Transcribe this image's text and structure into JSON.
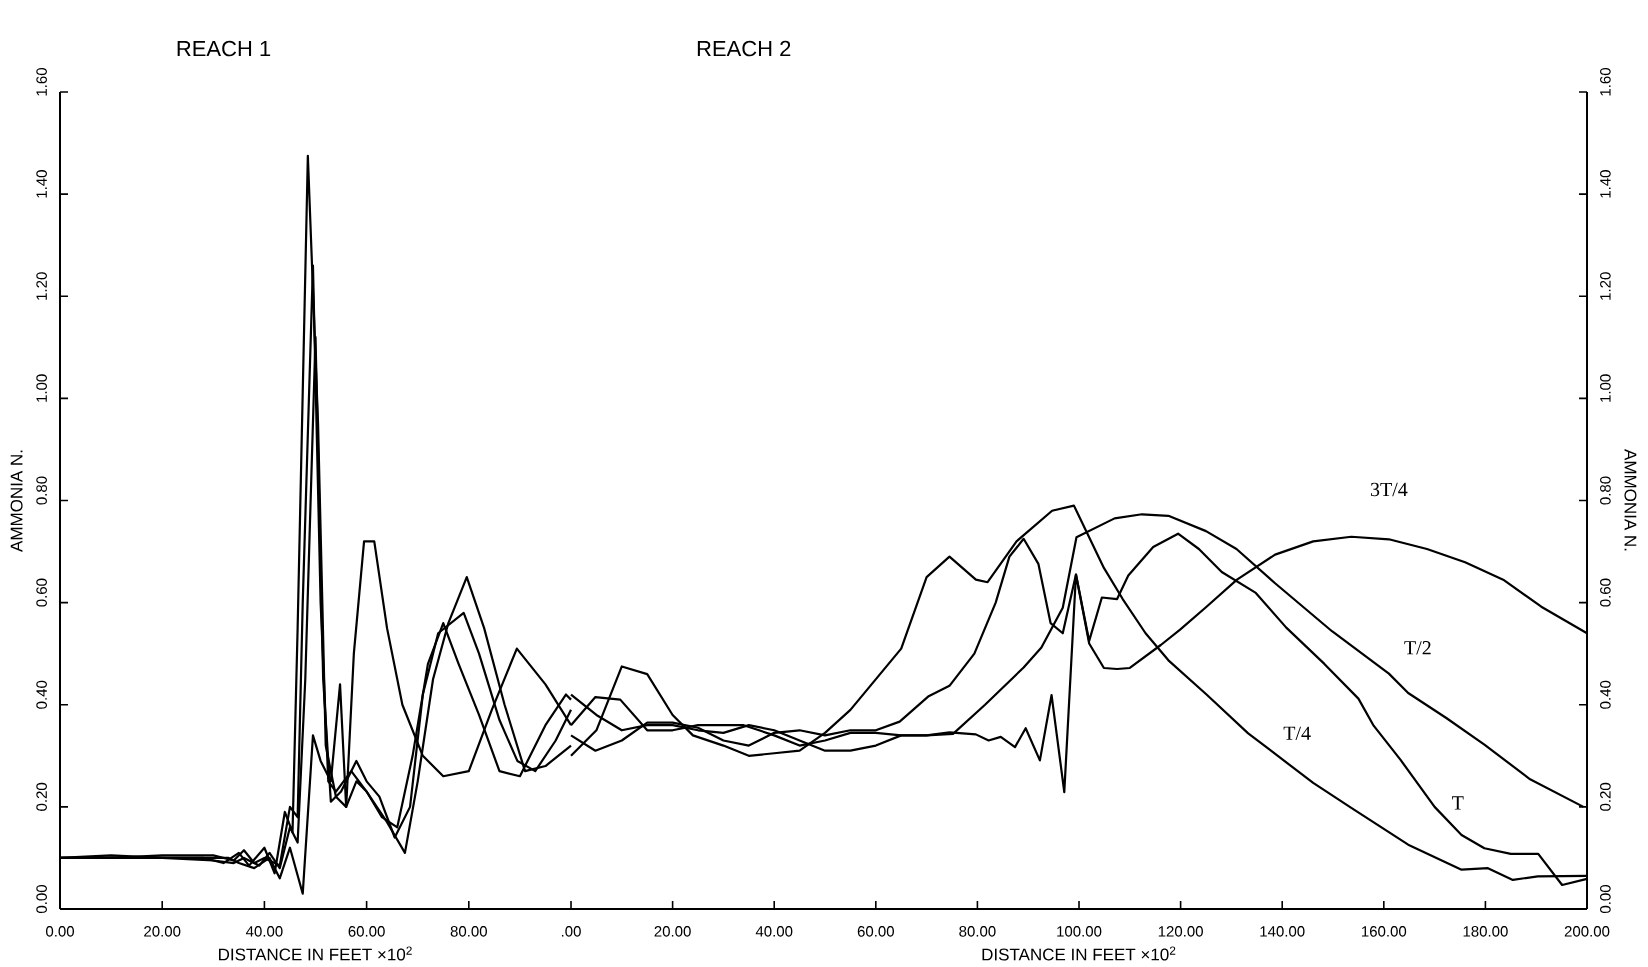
{
  "chart_data": [
    {
      "type": "line",
      "title": "REACH 1",
      "xlabel": "DISTANCE IN FEET ×10$^{2}$",
      "ylabel": "AMMONIA N.",
      "xlim": [
        0,
        100
      ],
      "ylim": [
        0,
        1.6
      ],
      "xticks": [
        {
          "value": 0,
          "label": "0.00"
        },
        {
          "value": 20,
          "label": "20.00"
        },
        {
          "value": 40,
          "label": "40.00"
        },
        {
          "value": 60,
          "label": "60.00"
        },
        {
          "value": 80,
          "label": "80.00"
        }
      ],
      "yticks": [
        {
          "value": 0,
          "label": "0.00"
        },
        {
          "value": 0.2,
          "label": "0.20"
        },
        {
          "value": 0.4,
          "label": "0.40"
        },
        {
          "value": 0.6,
          "label": "0.60"
        },
        {
          "value": 0.8,
          "label": "0.80"
        },
        {
          "value": 1.0,
          "label": "1.00"
        },
        {
          "value": 1.2,
          "label": "1.20"
        },
        {
          "value": 1.4,
          "label": "1.40"
        },
        {
          "value": 1.6,
          "label": "1.60"
        }
      ],
      "series": [
        {
          "color": "#000000",
          "x": [
            0,
            10,
            20,
            28,
            32,
            35,
            37,
            40,
            42,
            44,
            45.5,
            46.5,
            48.5,
            50.5,
            52,
            54,
            56,
            57.5,
            59.5,
            61.5,
            64,
            67,
            71,
            75,
            80,
            84.5,
            89.4,
            95,
            100
          ],
          "values": [
            0.1,
            0.105,
            0.1,
            0.1,
            0.09,
            0.11,
            0.085,
            0.12,
            0.07,
            0.19,
            0.15,
            0.55,
            1.475,
            0.95,
            0.32,
            0.22,
            0.2,
            0.5,
            0.72,
            0.72,
            0.55,
            0.4,
            0.3,
            0.26,
            0.27,
            0.39,
            0.51,
            0.44,
            0.36
          ]
        },
        {
          "color": "#000000",
          "x": [
            0,
            10,
            20,
            30,
            34,
            36,
            38,
            40,
            43,
            45,
            46.5,
            47.5,
            49.5,
            51,
            52.5,
            54,
            57,
            60,
            63,
            66,
            69,
            72,
            75,
            78,
            82,
            86,
            90,
            95,
            99,
            100
          ],
          "values": [
            0.1,
            0.1,
            0.105,
            0.105,
            0.095,
            0.115,
            0.09,
            0.1,
            0.085,
            0.2,
            0.18,
            0.6,
            1.26,
            0.6,
            0.25,
            0.23,
            0.27,
            0.23,
            0.18,
            0.16,
            0.3,
            0.48,
            0.56,
            0.48,
            0.38,
            0.27,
            0.26,
            0.36,
            0.42,
            0.41
          ]
        },
        {
          "color": "#000000",
          "x": [
            0,
            10,
            20,
            30,
            34,
            36,
            39,
            41,
            43,
            45,
            46.5,
            48,
            50,
            51.5,
            53,
            55,
            58,
            60,
            62.5,
            65.5,
            68.5,
            71,
            74,
            79,
            82,
            86,
            89.5,
            93,
            97,
            100
          ],
          "values": [
            0.1,
            0.1,
            0.1,
            0.095,
            0.09,
            0.1,
            0.085,
            0.11,
            0.08,
            0.16,
            0.13,
            0.45,
            1.12,
            0.45,
            0.21,
            0.23,
            0.29,
            0.25,
            0.22,
            0.14,
            0.2,
            0.42,
            0.54,
            0.58,
            0.5,
            0.37,
            0.29,
            0.27,
            0.33,
            0.39
          ]
        },
        {
          "color": "#000000",
          "x": [
            0,
            10,
            20,
            30,
            33,
            35,
            38,
            41,
            43,
            45,
            47.5,
            49.5,
            51,
            53,
            54.8,
            56,
            58,
            60,
            62,
            64,
            67.5,
            70,
            73,
            76,
            79.6,
            83,
            87,
            91,
            95,
            100
          ],
          "values": [
            0.1,
            0.1,
            0.1,
            0.1,
            0.1,
            0.09,
            0.08,
            0.1,
            0.06,
            0.12,
            0.03,
            0.34,
            0.29,
            0.25,
            0.44,
            0.2,
            0.25,
            0.23,
            0.2,
            0.17,
            0.11,
            0.25,
            0.45,
            0.56,
            0.65,
            0.55,
            0.4,
            0.27,
            0.28,
            0.32
          ]
        }
      ]
    },
    {
      "type": "line",
      "title": "REACH 2",
      "xlabel": "DISTANCE IN FEET ×10$^{2}$",
      "ylabel": "AMMONIA N.",
      "xlim": [
        0,
        200
      ],
      "ylim": [
        0,
        1.6
      ],
      "xticks": [
        {
          "value": 0,
          "label": ".00"
        },
        {
          "value": 20,
          "label": "20.00"
        },
        {
          "value": 40,
          "label": "40.00"
        },
        {
          "value": 60,
          "label": "60.00"
        },
        {
          "value": 80,
          "label": "80.00"
        },
        {
          "value": 100,
          "label": "100.00"
        },
        {
          "value": 120,
          "label": "120.00"
        },
        {
          "value": 140,
          "label": "140.00"
        },
        {
          "value": 160,
          "label": "160.00"
        },
        {
          "value": 180,
          "label": "180.00"
        },
        {
          "value": 200,
          "label": "200.00"
        }
      ],
      "yticks": [
        {
          "value": 0,
          "label": "0.00"
        },
        {
          "value": 0.2,
          "label": "0.20"
        },
        {
          "value": 0.4,
          "label": "0.40"
        },
        {
          "value": 0.6,
          "label": "0.60"
        },
        {
          "value": 0.8,
          "label": "0.80"
        },
        {
          "value": 1.0,
          "label": "1.00"
        },
        {
          "value": 1.2,
          "label": "1.20"
        },
        {
          "value": 1.4,
          "label": "1.40"
        },
        {
          "value": 1.6,
          "label": "1.60"
        }
      ],
      "series": [
        {
          "name": "T/4",
          "color": "#000000",
          "x": [
            0,
            5,
            10,
            15,
            20,
            24,
            30,
            35,
            40,
            45,
            50,
            55,
            60,
            65,
            70,
            74.5,
            79.7,
            82,
            87.7,
            94.7,
            99,
            104.9,
            108.6,
            113.1,
            117.6,
            125.1,
            133.3,
            146.1,
            153.6,
            164.8,
            175.3,
            180.5,
            185.4,
            190.3,
            200
          ],
          "values": [
            0.3,
            0.35,
            0.475,
            0.46,
            0.38,
            0.34,
            0.32,
            0.3,
            0.305,
            0.31,
            0.345,
            0.39,
            0.45,
            0.51,
            0.65,
            0.69,
            0.645,
            0.64,
            0.72,
            0.78,
            0.79,
            0.668,
            0.607,
            0.54,
            0.487,
            0.42,
            0.344,
            0.247,
            0.198,
            0.126,
            0.077,
            0.08,
            0.057,
            0.064,
            0.065
          ]
        },
        {
          "name": "T/2",
          "color": "#000000",
          "x": [
            0,
            5,
            10,
            15,
            20,
            25,
            30,
            35,
            40,
            45,
            50,
            55,
            60,
            65,
            70,
            75.2,
            81.5,
            89.1,
            92.6,
            96.8,
            99.5,
            107,
            112.4,
            117.6,
            125,
            131,
            138.6,
            149.8,
            161,
            164.8,
            172.3,
            179.8,
            188.8,
            199.3
          ],
          "values": [
            0.42,
            0.38,
            0.35,
            0.36,
            0.36,
            0.35,
            0.345,
            0.36,
            0.35,
            0.33,
            0.31,
            0.31,
            0.32,
            0.34,
            0.34,
            0.343,
            0.4,
            0.473,
            0.512,
            0.59,
            0.728,
            0.765,
            0.773,
            0.77,
            0.74,
            0.705,
            0.638,
            0.544,
            0.461,
            0.423,
            0.374,
            0.322,
            0.254,
            0.2
          ]
        },
        {
          "name": "T",
          "color": "#000000",
          "x": [
            0,
            4.8,
            10,
            15,
            20,
            25,
            30,
            35,
            40,
            45,
            50,
            55,
            60,
            64.7,
            70.3,
            74.5,
            79.4,
            83.6,
            86.3,
            89.1,
            92,
            94.4,
            96.8,
            99.4,
            102,
            104.5,
            107.5,
            109.7,
            114.6,
            119.5,
            123.6,
            128.1,
            134.8,
            140.8,
            148.3,
            155,
            158,
            163.3,
            170,
            175.3,
            179.8,
            185,
            190.4,
            195.1,
            200
          ],
          "values": [
            0.34,
            0.31,
            0.33,
            0.365,
            0.365,
            0.355,
            0.33,
            0.32,
            0.345,
            0.35,
            0.34,
            0.35,
            0.35,
            0.367,
            0.416,
            0.437,
            0.5,
            0.6,
            0.69,
            0.725,
            0.676,
            0.56,
            0.54,
            0.655,
            0.525,
            0.61,
            0.607,
            0.653,
            0.709,
            0.735,
            0.705,
            0.66,
            0.619,
            0.551,
            0.48,
            0.412,
            0.359,
            0.292,
            0.2,
            0.145,
            0.119,
            0.108,
            0.108,
            0.047,
            0.059
          ]
        },
        {
          "name": "3T/4",
          "color": "#000000",
          "x": [
            0,
            4.8,
            9.7,
            15,
            20,
            25,
            30,
            34,
            40,
            45,
            50,
            55,
            60,
            65,
            70,
            74.5,
            79.7,
            82.2,
            84.6,
            87.4,
            89.5,
            92.3,
            94.6,
            97.1,
            99.4,
            102,
            104.9,
            107.5,
            110,
            116.1,
            119.9,
            125.1,
            131.1,
            138.6,
            146.1,
            153.6,
            161,
            168.5,
            176,
            183.5,
            191,
            200
          ],
          "values": [
            0.36,
            0.415,
            0.41,
            0.35,
            0.35,
            0.36,
            0.36,
            0.36,
            0.34,
            0.32,
            0.33,
            0.345,
            0.345,
            0.34,
            0.34,
            0.346,
            0.342,
            0.33,
            0.337,
            0.317,
            0.354,
            0.291,
            0.419,
            0.229,
            0.655,
            0.52,
            0.472,
            0.47,
            0.472,
            0.517,
            0.547,
            0.592,
            0.645,
            0.694,
            0.72,
            0.729,
            0.724,
            0.705,
            0.679,
            0.645,
            0.592,
            0.54
          ]
        }
      ]
    }
  ]
}
